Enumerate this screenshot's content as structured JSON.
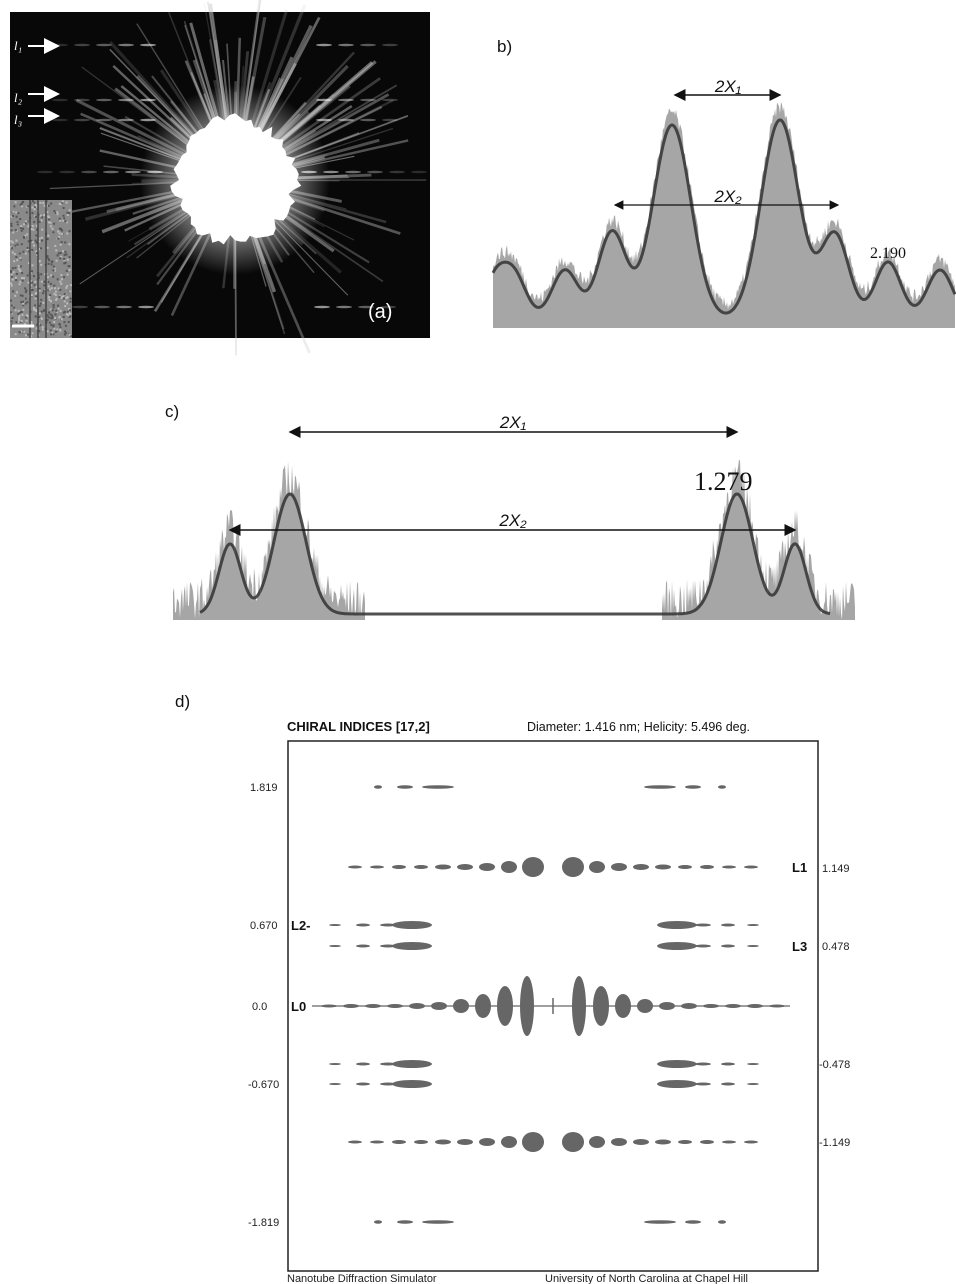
{
  "panel_a": {
    "arrow_labels": [
      "l₁",
      "l₂",
      "l₃"
    ],
    "label": "(a)"
  },
  "panel_b": {
    "label": "b)",
    "brackets": [
      "2X₁",
      "2X₂"
    ],
    "peak_label": "2.190"
  },
  "panel_c": {
    "label": "c)",
    "brackets": [
      "2X₁",
      "2X₂"
    ],
    "peak_label": "1.279"
  },
  "panel_d": {
    "label": "d)",
    "title": "CHIRAL INDICES [17,2]",
    "info": "Diameter: 1.416 nm; Helicity: 5.496 deg.",
    "left_values": [
      "1.819",
      "0.670",
      "0.0",
      "-0.670",
      "-1.819"
    ],
    "layer_labels": [
      "L2-",
      "L0",
      "L1",
      "L3"
    ],
    "right_values": [
      "1.149",
      "0.478",
      "-0.478",
      "-1.149"
    ],
    "footer_left": "Nanotube Diffraction Simulator",
    "footer_right": "University of North Carolina at Chapel Hill"
  }
}
